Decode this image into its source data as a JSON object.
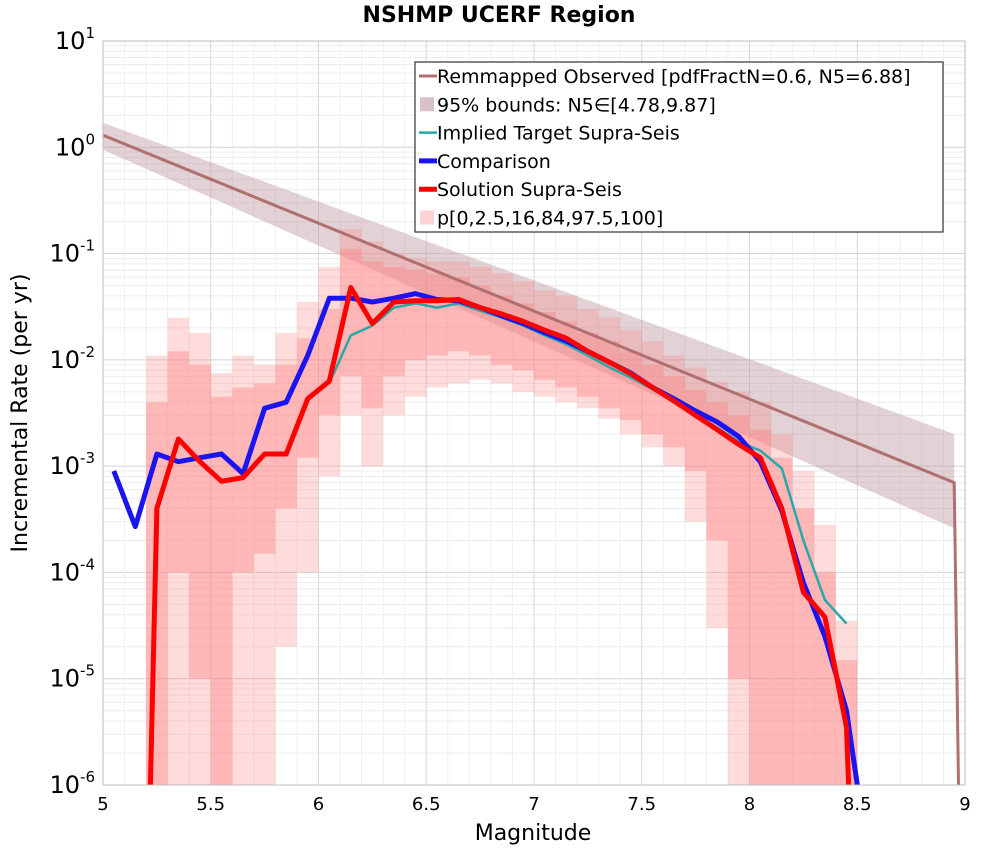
{
  "chart_data": {
    "type": "line",
    "title": "NSHMP UCERF Region",
    "xlabel": "Magnitude",
    "ylabel": "Incremental Rate (per yr)",
    "xlim": [
      5,
      9
    ],
    "ylim": [
      1e-06,
      10
    ],
    "yscale": "log",
    "grid": true,
    "legend_position": "top-right",
    "x_ticks": [
      "5",
      "5.5",
      "6",
      "6.5",
      "7",
      "7.5",
      "8",
      "8.5",
      "9"
    ],
    "y_ticks": [
      {
        "base": "10",
        "exp": "-6"
      },
      {
        "base": "10",
        "exp": "-5"
      },
      {
        "base": "10",
        "exp": "-4"
      },
      {
        "base": "10",
        "exp": "-3"
      },
      {
        "base": "10",
        "exp": "-2"
      },
      {
        "base": "10",
        "exp": "-1"
      },
      {
        "base": "10",
        "exp": "0"
      },
      {
        "base": "10",
        "exp": "1"
      }
    ],
    "series": [
      {
        "name": "Remmapped Observed [pdfFractN=0.6, N5=6.88]",
        "color": "#b07070",
        "x": [
          5.0,
          8.95,
          8.97
        ],
        "y": [
          1.3,
          0.0007,
          1e-06
        ]
      },
      {
        "name": "Implied Target Supra-Seis",
        "color": "#2aa7a7",
        "x": [
          6.05,
          6.15,
          6.25,
          6.35,
          6.45,
          6.55,
          6.65,
          6.75,
          6.85,
          6.95,
          7.05,
          7.15,
          7.25,
          7.35,
          7.45,
          7.55,
          7.65,
          7.75,
          7.85,
          7.95,
          8.05,
          8.15,
          8.25,
          8.35,
          8.45
        ],
        "y": [
          0.006,
          0.017,
          0.021,
          0.031,
          0.034,
          0.031,
          0.034,
          0.029,
          0.025,
          0.021,
          0.017,
          0.014,
          0.011,
          0.0085,
          0.0068,
          0.0053,
          0.0041,
          0.0031,
          0.0023,
          0.0017,
          0.0014,
          0.00095,
          0.0002,
          5.5e-05,
          3.3e-05
        ]
      },
      {
        "name": "Comparison",
        "color": "#1a14f0",
        "x": [
          5.05,
          5.15,
          5.25,
          5.35,
          5.45,
          5.55,
          5.65,
          5.75,
          5.85,
          5.95,
          6.05,
          6.15,
          6.25,
          6.35,
          6.45,
          6.55,
          6.65,
          6.75,
          6.85,
          6.95,
          7.05,
          7.15,
          7.25,
          7.35,
          7.45,
          7.55,
          7.65,
          7.75,
          7.85,
          7.95,
          8.05,
          8.15,
          8.25,
          8.35,
          8.45,
          8.5
        ],
        "y": [
          0.0009,
          0.00027,
          0.0013,
          0.0011,
          0.0012,
          0.0013,
          0.00085,
          0.0035,
          0.004,
          0.011,
          0.038,
          0.038,
          0.035,
          0.038,
          0.042,
          0.037,
          0.036,
          0.031,
          0.026,
          0.022,
          0.018,
          0.015,
          0.012,
          0.0095,
          0.0075,
          0.0055,
          0.0043,
          0.0033,
          0.0026,
          0.0019,
          0.0011,
          0.00038,
          8e-05,
          2.5e-05,
          5e-06,
          1e-06
        ]
      },
      {
        "name": "Solution Supra-Seis",
        "color": "#ff0000",
        "x": [
          5.22,
          5.25,
          5.35,
          5.45,
          5.55,
          5.65,
          5.75,
          5.85,
          5.95,
          6.05,
          6.15,
          6.25,
          6.35,
          6.45,
          6.55,
          6.65,
          6.75,
          6.85,
          6.95,
          7.05,
          7.15,
          7.25,
          7.35,
          7.45,
          7.55,
          7.65,
          7.75,
          7.85,
          7.95,
          8.05,
          8.15,
          8.25,
          8.35,
          8.45,
          8.46
        ],
        "y": [
          1e-06,
          0.0004,
          0.0018,
          0.0011,
          0.00072,
          0.00078,
          0.0013,
          0.0013,
          0.0043,
          0.0063,
          0.048,
          0.022,
          0.035,
          0.036,
          0.036,
          0.037,
          0.031,
          0.027,
          0.023,
          0.019,
          0.016,
          0.012,
          0.0095,
          0.0074,
          0.0055,
          0.0041,
          0.003,
          0.0022,
          0.0016,
          0.0012,
          0.0004,
          6.5e-05,
          3.8e-05,
          3.5e-06,
          1e-06
        ]
      }
    ],
    "bands": [
      {
        "name": "95% bounds: N5∈[4.78,9.87]",
        "color": "#bf9aa2",
        "opacity": 0.45,
        "x": [
          5.0,
          8.95
        ],
        "lower": [
          0.95,
          0.00026
        ],
        "upper": [
          1.7,
          0.002
        ]
      },
      {
        "name": "p[0,2.5,16,84,97.5,100]",
        "color": "#ff8080",
        "opacity": 0.28,
        "x": [
          5.25,
          5.35,
          5.45,
          5.55,
          5.65,
          5.75,
          5.85,
          5.95,
          6.05,
          6.15,
          6.25,
          6.35,
          6.45,
          6.55,
          6.65,
          6.75,
          6.85,
          6.95,
          7.05,
          7.15,
          7.25,
          7.35,
          7.45,
          7.55,
          7.65,
          7.75,
          7.85,
          7.95,
          8.05,
          8.15,
          8.25,
          8.35,
          8.45
        ],
        "lower": [
          1e-06,
          1e-06,
          1e-06,
          1e-06,
          1e-06,
          1e-06,
          2e-05,
          0.0001,
          0.0008,
          0.003,
          0.001,
          0.003,
          0.0045,
          0.0055,
          0.006,
          0.0065,
          0.006,
          0.005,
          0.0045,
          0.004,
          0.0035,
          0.0028,
          0.002,
          0.0015,
          0.001,
          0.0003,
          3e-05,
          1e-06,
          1e-06,
          1e-06,
          1e-06,
          1e-06,
          1e-06
        ],
        "upper": [
          0.011,
          0.025,
          0.018,
          0.0075,
          0.011,
          0.009,
          0.018,
          0.035,
          0.075,
          0.17,
          0.13,
          0.1,
          0.09,
          0.085,
          0.085,
          0.075,
          0.065,
          0.055,
          0.045,
          0.04,
          0.03,
          0.025,
          0.019,
          0.015,
          0.011,
          0.0085,
          0.0062,
          0.005,
          0.004,
          0.002,
          0.0009,
          0.00028,
          3.5e-05
        ]
      },
      {
        "name": "",
        "color": "#ff8080",
        "opacity": 0.4,
        "x": [
          5.25,
          5.35,
          5.45,
          5.55,
          5.65,
          5.75,
          5.85,
          5.95,
          6.05,
          6.15,
          6.25,
          6.35,
          6.45,
          6.55,
          6.65,
          6.75,
          6.85,
          6.95,
          7.05,
          7.15,
          7.25,
          7.35,
          7.45,
          7.55,
          7.65,
          7.75,
          7.85,
          7.95,
          8.05,
          8.15,
          8.25,
          8.35,
          8.45
        ],
        "lower": [
          1e-06,
          0.0001,
          1e-05,
          1e-06,
          0.0001,
          0.00015,
          0.0004,
          0.0012,
          0.003,
          0.007,
          0.0035,
          0.007,
          0.01,
          0.011,
          0.012,
          0.011,
          0.009,
          0.008,
          0.0065,
          0.0055,
          0.0045,
          0.0035,
          0.0027,
          0.002,
          0.0015,
          0.0009,
          0.0002,
          1e-05,
          1e-06,
          1e-06,
          1e-06,
          1e-06,
          1e-06
        ],
        "upper": [
          0.004,
          0.012,
          0.009,
          0.0045,
          0.0055,
          0.006,
          0.009,
          0.016,
          0.03,
          0.11,
          0.085,
          0.075,
          0.07,
          0.065,
          0.06,
          0.05,
          0.04,
          0.034,
          0.028,
          0.023,
          0.018,
          0.015,
          0.012,
          0.009,
          0.007,
          0.0052,
          0.004,
          0.003,
          0.0022,
          0.0012,
          0.0004,
          0.0001,
          1.5e-05
        ]
      }
    ]
  }
}
